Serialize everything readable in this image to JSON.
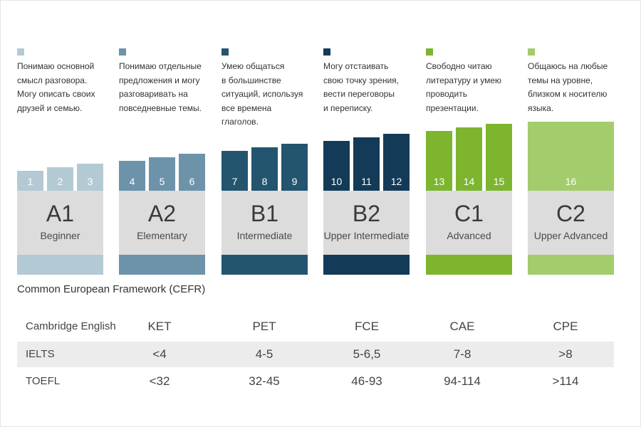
{
  "levels": [
    {
      "code": "A1",
      "name": "Beginner",
      "color": "#b3cad4",
      "description": "Понимаю основной\nсмысл разговора.\nМогу описать своих\nдрузей и семью.",
      "steps": [
        1,
        2,
        3
      ]
    },
    {
      "code": "A2",
      "name": "Elementary",
      "color": "#6d93aa",
      "description": "Понимаю отдельные\nпредложения и могу\nразговаривать на\nповседневные темы.",
      "steps": [
        4,
        5,
        6
      ]
    },
    {
      "code": "B1",
      "name": "Intermediate",
      "color": "#23556e",
      "description": "Умею общаться\nв большинстве\nситуаций, используя\nвсе времена\nглаголов.",
      "steps": [
        7,
        8,
        9
      ]
    },
    {
      "code": "B2",
      "name": "Upper Intermediate",
      "color": "#133b57",
      "description": "Могу отстаивать\nсвою точку зрения,\nвести переговоры\nи переписку.",
      "steps": [
        10,
        11,
        12
      ]
    },
    {
      "code": "C1",
      "name": "Advanced",
      "color": "#7db52f",
      "description": "Свободно читаю\nлитературу и умею\nпроводить\nпрезентации.",
      "steps": [
        13,
        14,
        15
      ]
    },
    {
      "code": "C2",
      "name": "Upper Advanced",
      "color": "#a3cc6c",
      "description": "Общаюсь на любые\nтемы на уровне,\nблизком к носителю\nязыка.",
      "steps": [
        16
      ]
    }
  ],
  "framework_label": "Common European Framework (CEFR)",
  "exams": [
    {
      "name": "Cambridge English",
      "values": [
        "KET",
        "PET",
        "FCE",
        "CAE",
        "CPE"
      ]
    },
    {
      "name": "IELTS",
      "values": [
        "<4",
        "4-5",
        "5-6,5",
        "7-8",
        ">8"
      ]
    },
    {
      "name": "TOEFL",
      "values": [
        "<32",
        "32-45",
        "46-93",
        "94-114",
        ">114"
      ]
    }
  ]
}
